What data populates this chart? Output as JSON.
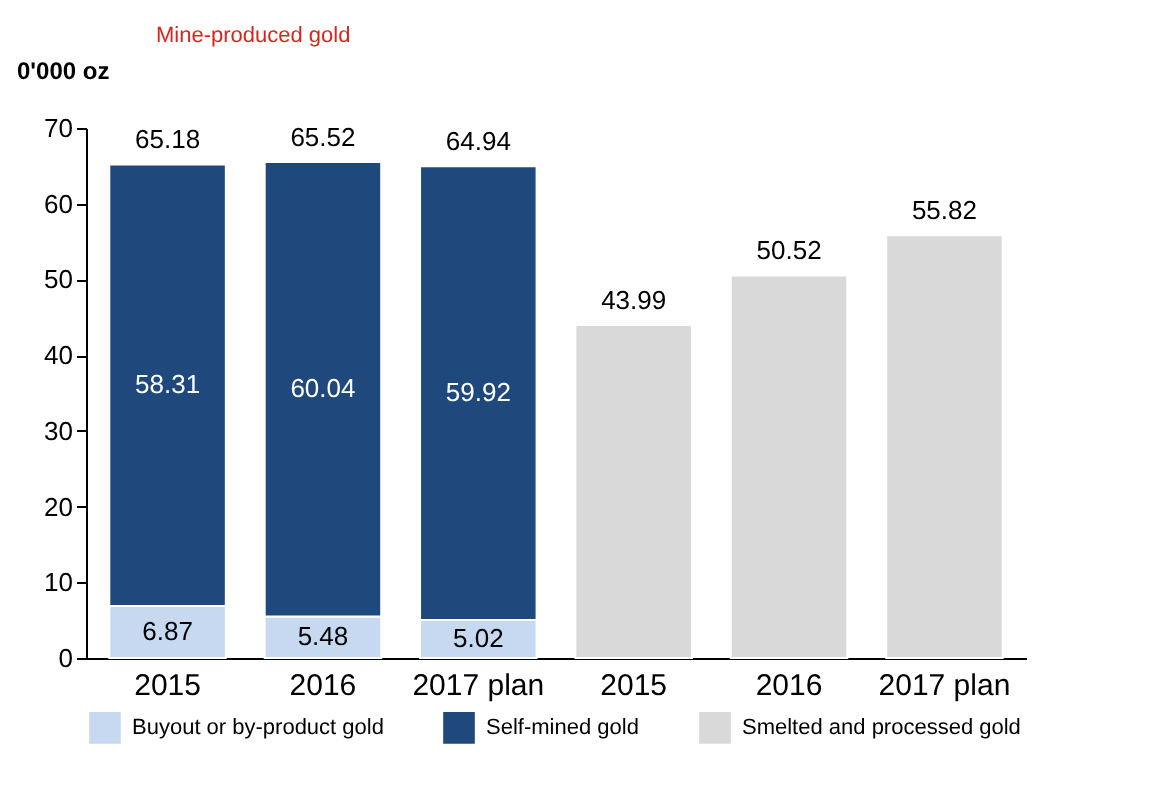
{
  "chart_data": {
    "type": "bar",
    "stacked": true,
    "subtitle": "Mine-produced gold",
    "ylabel": "0'000 oz",
    "categories": [
      "2015",
      "2016",
      "2017 plan",
      "2015",
      "2016",
      "2017 plan"
    ],
    "series": [
      {
        "name": "Buyout or by-product gold",
        "color": "#c6d9f1",
        "values": [
          6.87,
          5.48,
          5.02,
          null,
          null,
          null
        ],
        "value_labels": [
          "6.87",
          "5.48",
          "5.02",
          null,
          null,
          null
        ]
      },
      {
        "name": "Self-mined gold",
        "color": "#1f497d",
        "values": [
          58.31,
          60.04,
          59.92,
          null,
          null,
          null
        ],
        "value_labels": [
          "58.31",
          "60.04",
          "59.92",
          null,
          null,
          null
        ]
      },
      {
        "name": "Smelted and processed gold",
        "color": "#d9d9d9",
        "values": [
          null,
          null,
          null,
          43.99,
          50.52,
          55.82
        ],
        "value_labels": [
          null,
          null,
          null,
          "43.99",
          "50.52",
          "55.82"
        ]
      }
    ],
    "totals": [
      "65.18",
      "65.52",
      "64.94",
      null,
      null,
      null
    ],
    "ylim": [
      0,
      70
    ],
    "yticks": [
      0,
      10,
      20,
      30,
      40,
      50,
      60,
      70
    ],
    "grid": false,
    "legend": "bottom"
  }
}
